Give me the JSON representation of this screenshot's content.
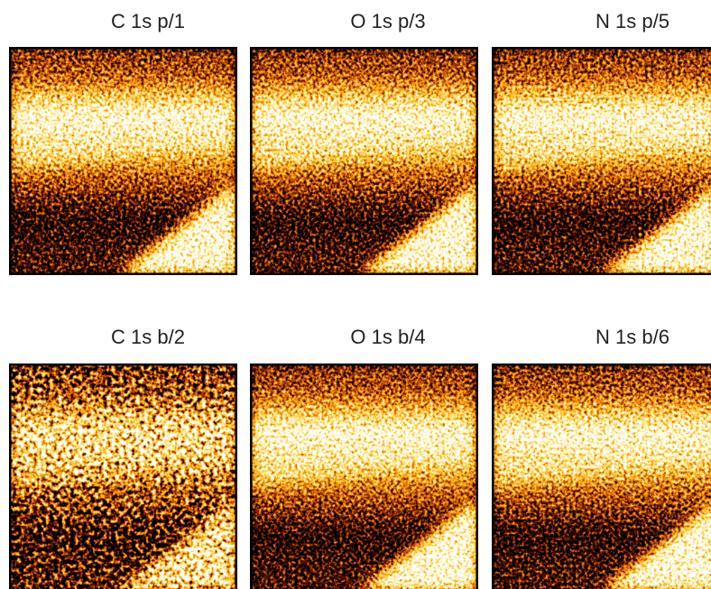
{
  "panels": [
    {
      "title": "C 1s p/1"
    },
    {
      "title": "O 1s p/3"
    },
    {
      "title": "N 1s p/5"
    },
    {
      "title": "C 1s b/2"
    },
    {
      "title": "O 1s b/4"
    },
    {
      "title": "N 1s b/6"
    }
  ]
}
